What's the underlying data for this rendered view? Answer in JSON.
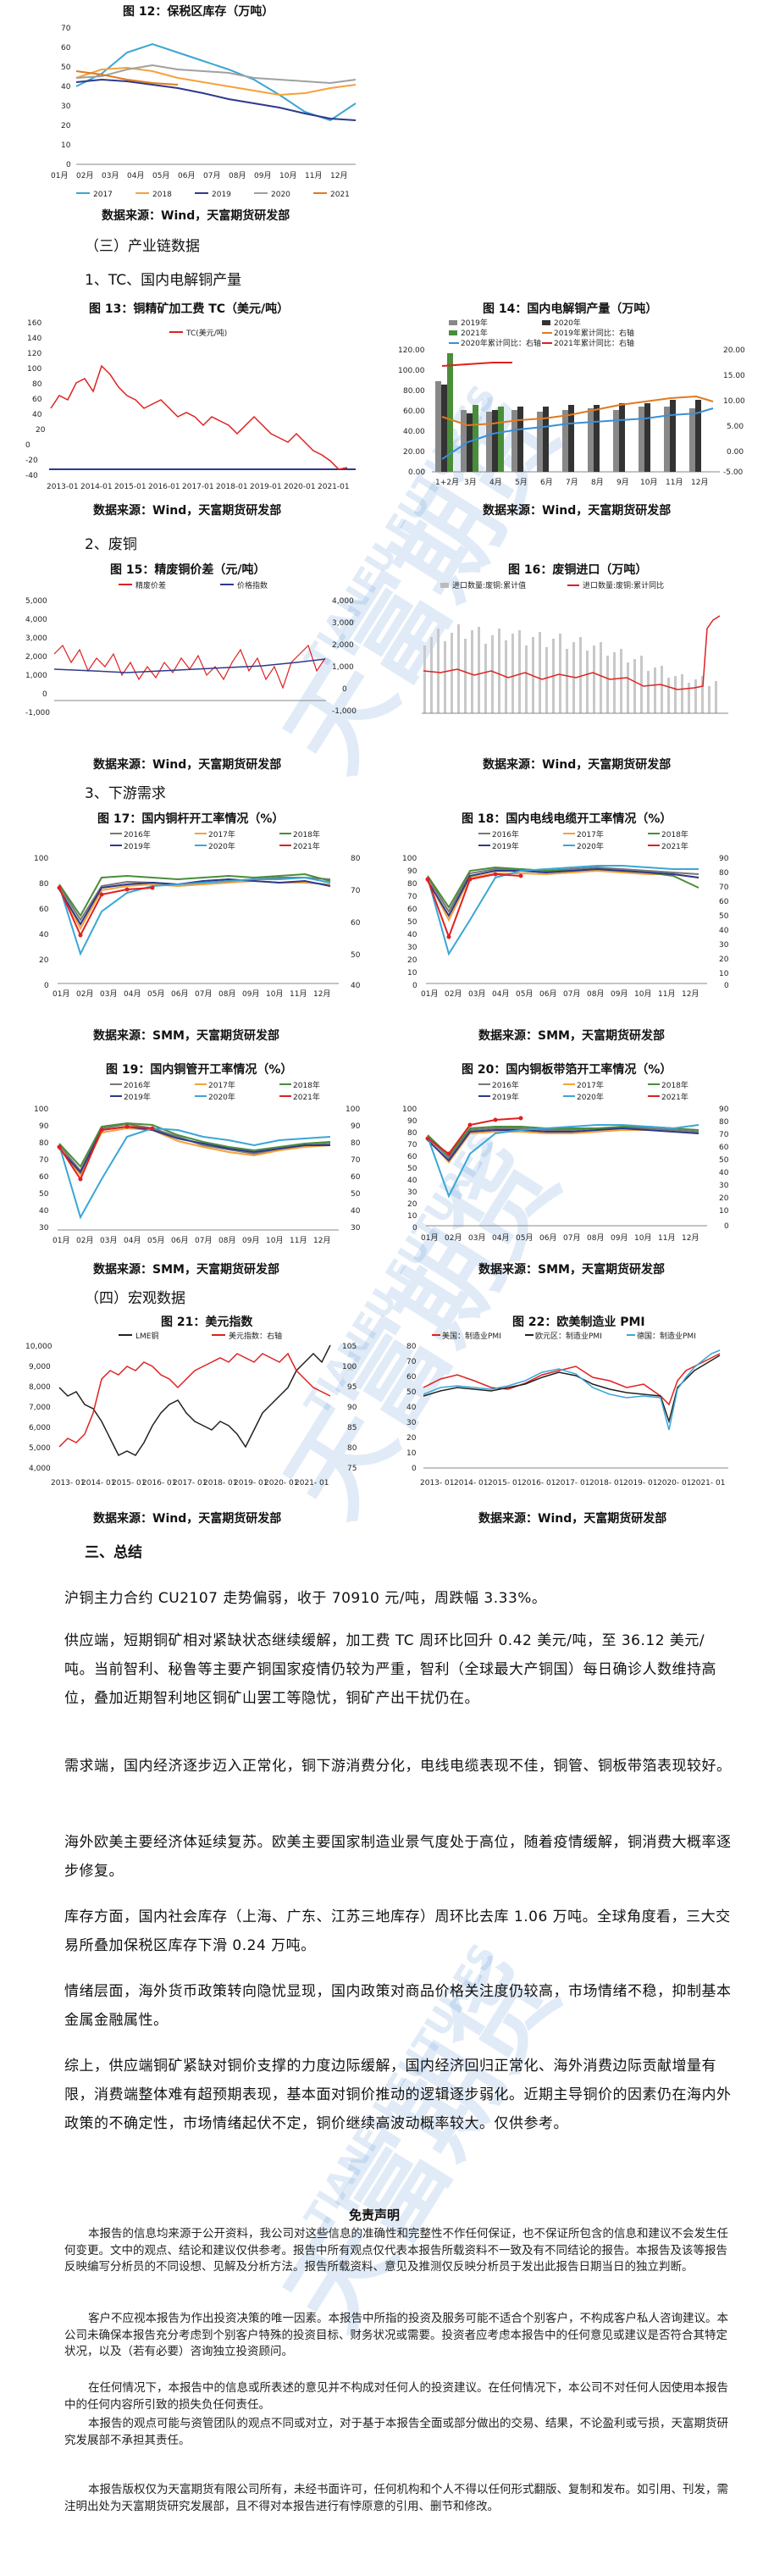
{
  "fig12": {
    "title": "图 12：保税区库存（万吨）",
    "source": "数据来源：Wind，天富期货研发部",
    "yticks": [
      "70",
      "60",
      "50",
      "40",
      "30",
      "20",
      "10",
      "0"
    ],
    "xticks": [
      "01月",
      "02月",
      "03月",
      "04月",
      "05月",
      "06月",
      "07月",
      "08月",
      "09月",
      "10月",
      "11月",
      "12月"
    ],
    "legend": [
      "2017",
      "2018",
      "2019",
      "2020",
      "2021"
    ],
    "colors": [
      "#3aa6d6",
      "#f5a23a",
      "#2d3a8c",
      "#a0a0a0",
      "#e07a20"
    ]
  },
  "sec3": "（三）产业链数据",
  "sub1": "1、TC、国内电解铜产量",
  "fig13": {
    "title": "图 13：铜精矿加工费 TC（美元/吨）",
    "legend": "TC(美元/吨)",
    "yticks": [
      "160",
      "140",
      "120",
      "100",
      "80",
      "60",
      "40",
      "20",
      "0",
      "-20",
      "-40"
    ],
    "xticks": [
      "2013-01",
      "2014-01",
      "2015-01",
      "2016-01",
      "2017-01",
      "2018-01",
      "2019-01",
      "2020-01",
      "2021-01"
    ],
    "source": "数据来源：Wind，天富期货研发部"
  },
  "fig14": {
    "title": "图 14：国内电解铜产量（万吨）",
    "legend": [
      "2019年",
      "2020年",
      "2021年",
      "2019年累计同比：右轴",
      "2020年累计同比：右轴",
      "2021年累计同比：右轴"
    ],
    "yticks": [
      "120.00",
      "100.00",
      "80.00",
      "60.00",
      "40.00",
      "20.00",
      "0.00"
    ],
    "y2ticks": [
      "20.00",
      "15.00",
      "10.00",
      "5.00",
      "0.00",
      "-5.00"
    ],
    "xticks": [
      "1+2月",
      "3月",
      "4月",
      "5月",
      "6月",
      "7月",
      "8月",
      "9月",
      "10月",
      "11月",
      "12月"
    ],
    "source": "数据来源：Wind，天富期货研发部"
  },
  "sub2": "2、废铜",
  "fig15": {
    "title": "图 15：精废铜价差（元/吨）",
    "legend": [
      "精废价差",
      "价格指数"
    ],
    "yticks": [
      "5,000",
      "4,000",
      "3,000",
      "2,000",
      "1,000",
      "0",
      "-1,000"
    ],
    "y2ticks": [
      "4,000",
      "3,000",
      "2,000",
      "1,000",
      "0",
      "-1,000"
    ],
    "source": "数据来源：Wind，天富期货研发部"
  },
  "fig16": {
    "title": "图 16：废铜进口（万吨）",
    "legend": [
      "进口数量:废铜:累计值",
      "进口数量:废铜:累计同比"
    ],
    "source": "数据来源：Wind，天富期货研发部"
  },
  "sub3": "3、下游需求",
  "fig17": {
    "title": "图 17：国内铜杆开工率情况（%）",
    "yticks": [
      "100",
      "80",
      "60",
      "40",
      "20",
      "0"
    ],
    "y2ticks": [
      "80",
      "70",
      "60",
      "50",
      "40"
    ],
    "source": "数据来源：SMM，天富期货研发部"
  },
  "fig18": {
    "title": "图 18：国内电线电缆开工率情况（%）",
    "yticks": [
      "100",
      "90",
      "80",
      "70",
      "60",
      "50",
      "40",
      "30",
      "20",
      "10",
      "0"
    ],
    "y2ticks": [
      "90",
      "80",
      "70",
      "60",
      "50",
      "40",
      "30",
      "20",
      "10",
      "0"
    ],
    "source": "数据来源：SMM，天富期货研发部"
  },
  "fig19": {
    "title": "图 19：国内铜管开工率情况（%）",
    "yticks": [
      "100",
      "90",
      "80",
      "70",
      "60",
      "50",
      "40",
      "30"
    ],
    "y2ticks": [
      "100",
      "90",
      "80",
      "70",
      "60",
      "50",
      "40",
      "30"
    ],
    "source": "数据来源：SMM，天富期货研发部"
  },
  "fig20": {
    "title": "图 20：国内铜板带箔开工率情况（%）",
    "yticks": [
      "100",
      "90",
      "80",
      "70",
      "60",
      "50",
      "40",
      "30",
      "20",
      "10",
      "0"
    ],
    "y2ticks": [
      "90",
      "80",
      "70",
      "60",
      "50",
      "40",
      "30",
      "20",
      "10",
      "0"
    ],
    "source": "数据来源：SMM，天富期货研发部"
  },
  "yearLegend": [
    "2016年",
    "2017年",
    "2018年",
    "2019年",
    "2020年",
    "2021年"
  ],
  "monthTicks": [
    "01月",
    "02月",
    "03月",
    "04月",
    "05月",
    "06月",
    "07月",
    "08月",
    "09月",
    "10月",
    "11月",
    "12月"
  ],
  "sec4": "（四）宏观数据",
  "fig21": {
    "title": "图 21：美元指数",
    "legend": [
      "LME铜",
      "美元指数：右轴"
    ],
    "yticks": [
      "10,000",
      "9,000",
      "8,000",
      "7,000",
      "6,000",
      "5,000",
      "4,000"
    ],
    "y2ticks": [
      "105",
      "100",
      "95",
      "90",
      "85",
      "80",
      "75"
    ],
    "xticks": [
      "2013-\n01",
      "2014-\n01",
      "2015-\n01",
      "2016-\n01",
      "2017-\n01",
      "2018-\n01",
      "2019-\n01",
      "2020-\n01",
      "2021-\n01"
    ]
  },
  "fig22": {
    "title": "图 22：欧美制造业 PMI",
    "legend": [
      "美国：制造业PMI",
      "欧元区：制造业PMI",
      "德国：制造业PMI"
    ],
    "yticks": [
      "80",
      "70",
      "60",
      "50",
      "40",
      "30",
      "20",
      "10",
      "0"
    ],
    "xticks": [
      "2013-\n01",
      "2014-\n01",
      "2015-\n01",
      "2016-\n01",
      "2017-\n01",
      "2018-\n01",
      "2019-\n01",
      "2020-\n01",
      "2021-\n01"
    ]
  },
  "macroSource": [
    "数据来源：Wind，天富期货研发部",
    "数据来源：Wind，天富期货研发部"
  ],
  "sec5": "三、总结",
  "paras": [
    "沪铜主力合约 CU2107 走势偏弱，收于 70910 元/吨，周跌幅 3.33%。",
    "供应端，短期铜矿相对紧缺状态继续缓解，加工费 TC 周环比回升 0.42 美元/吨，至 36.12 美元/吨。当前智利、秘鲁等主要产铜国家疫情仍较为严重，智利（全球最大产铜国）每日确诊人数维持高位，叠加近期智利地区铜矿山罢工等隐忧，铜矿产出干扰仍在。",
    "需求端，国内经济逐步迈入正常化，铜下游消费分化，电线电缆表现不佳，铜管、铜板带箔表现较好。",
    "海外欧美主要经济体延续复苏。欧美主要国家制造业景气度处于高位，随着疫情缓解，铜消费大概率逐步修复。",
    "库存方面，国内社会库存（上海、广东、江苏三地库存）周环比去库 1.06 万吨。全球角度看，三大交易所叠加保税区库存下滑 0.24 万吨。",
    "情绪层面，海外货币政策转向隐忧显现，国内政策对商品价格关注度仍较高，市场情绪不稳，抑制基本金属金融属性。",
    "综上，供应端铜矿紧缺对铜价支撑的力度边际缓解，国内经济回归正常化、海外消费边际贡献增量有限，消费端整体难有超预期表现，基本面对铜价推动的逻辑逐步弱化。近期主导铜价的因素仍在海内外政策的不确定性，市场情绪起伏不定，铜价继续高波动概率较大。仅供参考。"
  ],
  "disclaimer": {
    "title": "免责声明",
    "p": [
      "本报告的信息均来源于公开资料，我公司对这些信息的准确性和完整性不作任何保证，也不保证所包含的信息和建议不会发生任何变更。文中的观点、结论和建议仅供参考。报告中所有观点仅代表本报告所载资料不一致及有不同结论的报告。本报告及该等报告反映编写分析员的不同设想、见解及分析方法。报告所载资料、意见及推测仅反映分析员于发出此报告日期当日的独立判断。",
      "客户不应视本报告为作出投资决策的唯一因素。本报告中所指的投资及服务可能不适合个别客户，不构成客户私人咨询建议。本公司未确保本报告充分考虑到个别客户特殊的投资目标、财务状况或需要。投资者应考虑本报告中的任何意见或建议是否符合其特定状况，以及（若有必要）咨询独立投资顾问。",
      "在任何情况下，本报告中的信息或所表述的意见并不构成对任何人的投资建议。在任何情况下，本公司不对任何人因使用本报告中的任何内容所引致的损失负任何责任。",
      "本报告的观点可能与资管团队的观点不同或对立，对于基于本报告全面或部分做出的交易、结果，不论盈利或亏损，天富期货研究发展部不承担其责任。",
      "本报告版权仅为天富期货有限公司所有，未经书面许可，任何机构和个人不得以任何形式翻版、复制和发布。如引用、刊发，需注明出处为天富期货研究发展部，且不得对本报告进行有悖原意的引用、删节和修改。"
    ]
  },
  "watermark": "天富期货",
  "watermarkEn": "TIANFU FUTURES"
}
